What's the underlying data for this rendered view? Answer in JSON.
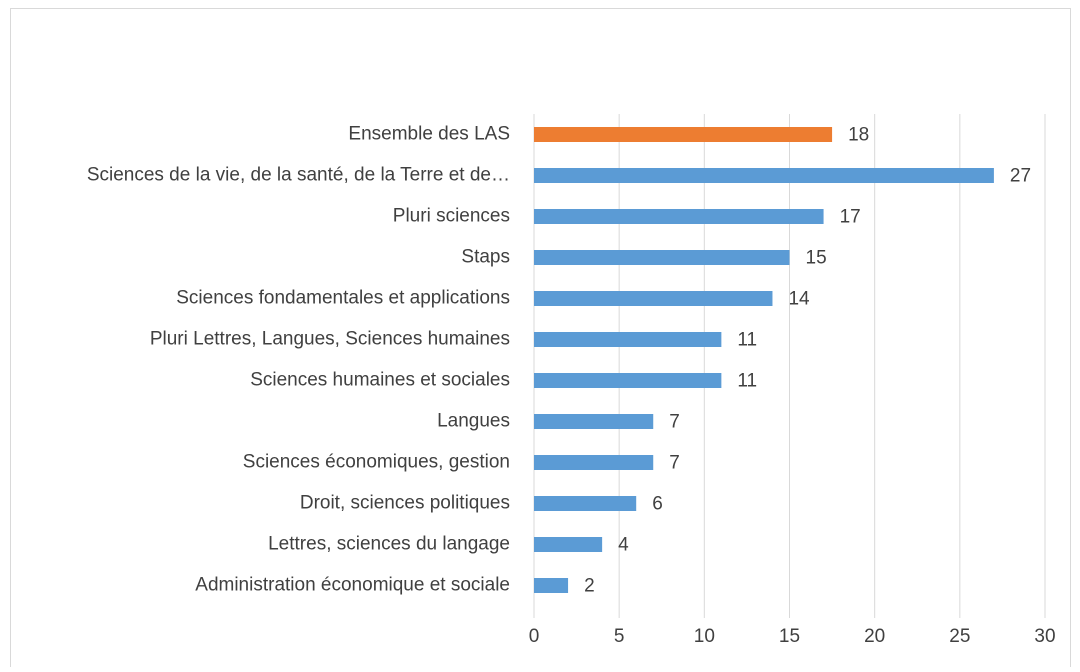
{
  "chart_data": {
    "type": "bar",
    "orientation": "horizontal",
    "categories": [
      "Ensemble des LAS",
      "Sciences de la vie, de la santé, de la Terre et de…",
      "Pluri sciences",
      "Staps",
      "Sciences fondamentales et applications",
      "Pluri Lettres, Langues, Sciences humaines",
      "Sciences humaines et sociales",
      "Langues",
      "Sciences économiques, gestion",
      "Droit, sciences politiques",
      "Lettres, sciences du langage",
      "Administration économique et sociale"
    ],
    "values": [
      17.5,
      27,
      17,
      15,
      14,
      11,
      11,
      7,
      7,
      6,
      4,
      2
    ],
    "value_labels": [
      "18",
      "27",
      "17",
      "15",
      "14",
      "11",
      "11",
      "7",
      "7",
      "6",
      "4",
      "2"
    ],
    "colors": [
      "#ed7d31",
      "#5b9bd5",
      "#5b9bd5",
      "#5b9bd5",
      "#5b9bd5",
      "#5b9bd5",
      "#5b9bd5",
      "#5b9bd5",
      "#5b9bd5",
      "#5b9bd5",
      "#5b9bd5",
      "#5b9bd5"
    ],
    "xlim": [
      0,
      30
    ],
    "xticks": [
      0,
      5,
      10,
      15,
      20,
      25,
      30
    ],
    "grid": true
  }
}
